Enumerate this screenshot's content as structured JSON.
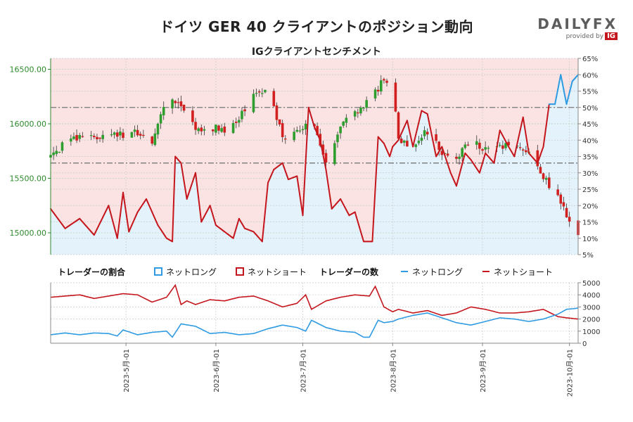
{
  "title": "ドイツ GER 40 クライアントのポジション動向",
  "subtitle": "IGクライアントセンチメント",
  "logo": {
    "brand": "DAILYFX",
    "provided_by": "provided by",
    "ig": "IG"
  },
  "colors": {
    "long": "#2e9be2",
    "short": "#c4161c",
    "up": "#2e9e2e",
    "down": "#d21f1f",
    "long_fill": "#e3f2fb",
    "short_fill": "#fbe3e3"
  },
  "chart_data": [
    {
      "type": "candlestick",
      "title": "IGクライアントセンチメント",
      "y_left_ticks": [
        "15000.00",
        "15500.00",
        "16000.00",
        "16500.00"
      ],
      "y_left_values": [
        15000,
        15500,
        16000,
        16500
      ],
      "ylim_left": [
        14800,
        16600
      ],
      "y_right_ticks": [
        "5%",
        "10%",
        "15%",
        "20%",
        "25%",
        "30%",
        "35%",
        "40%",
        "45%",
        "50%",
        "55%",
        "60%",
        "65%"
      ],
      "ylim_right": [
        5,
        65
      ],
      "reference_lines_pct": [
        33,
        50
      ],
      "x_tick_labels": [
        "2023-5月-01",
        "2023-6月-01",
        "2023-7月-01",
        "2023-8月-01",
        "2023-9月-01",
        "2023-10月-01"
      ],
      "x_tick_days": [
        26,
        57,
        87,
        118,
        149,
        179
      ],
      "x_range_days": [
        0,
        182
      ],
      "close_key_days": [
        0,
        5,
        10,
        15,
        20,
        26,
        30,
        35,
        40,
        45,
        50,
        57,
        60,
        65,
        70,
        75,
        80,
        87,
        90,
        95,
        100,
        105,
        108,
        113,
        115,
        118,
        120,
        125,
        130,
        135,
        140,
        145,
        149,
        155,
        160,
        165,
        170,
        175,
        178,
        182
      ],
      "close_key_values": [
        15700,
        15820,
        15870,
        15860,
        15910,
        15890,
        15920,
        15840,
        16250,
        16190,
        15930,
        15960,
        15930,
        16060,
        16280,
        16310,
        15880,
        15950,
        16050,
        15610,
        16000,
        16120,
        16160,
        16310,
        16430,
        16330,
        15850,
        15810,
        15930,
        15740,
        15700,
        15860,
        15760,
        15790,
        15820,
        15730,
        15520,
        15330,
        15150,
        14970
      ],
      "long_pct_key_days": [
        0,
        5,
        10,
        15,
        20,
        23,
        25,
        27,
        30,
        33,
        37,
        40,
        42,
        43,
        45,
        47,
        50,
        52,
        55,
        57,
        60,
        63,
        65,
        67,
        70,
        73,
        75,
        77,
        80,
        82,
        85,
        87,
        89,
        91,
        93,
        95,
        97,
        100,
        103,
        105,
        108,
        111,
        113,
        115,
        117,
        118,
        120,
        123,
        125,
        128,
        130,
        133,
        135,
        138,
        140,
        143,
        145,
        148,
        150,
        153,
        155,
        158,
        160,
        163,
        165,
        168,
        170,
        172,
        174,
        176,
        178,
        180,
        182
      ],
      "long_pct_key_values": [
        19,
        13,
        16,
        11,
        20,
        10,
        24,
        12,
        18,
        22,
        14,
        10,
        9,
        35,
        33,
        22,
        30,
        15,
        20,
        14,
        12,
        10,
        16,
        13,
        12,
        9,
        27,
        31,
        33,
        28,
        29,
        17,
        50,
        44,
        40,
        31,
        19,
        22,
        17,
        18,
        9,
        9,
        41,
        39,
        35,
        38,
        40,
        46,
        38,
        49,
        48,
        35,
        38,
        30,
        26,
        36,
        34,
        30,
        36,
        33,
        43,
        38,
        35,
        47,
        36,
        33,
        38,
        51,
        51,
        60,
        51,
        58,
        60
      ]
    },
    {
      "type": "area",
      "y_ticks": [
        "0",
        "1000",
        "2000",
        "3000",
        "4000",
        "5000"
      ],
      "ylim": [
        0,
        5000
      ],
      "long_count_key_days": [
        0,
        5,
        10,
        15,
        20,
        23,
        25,
        30,
        35,
        40,
        42,
        45,
        50,
        55,
        60,
        65,
        70,
        75,
        80,
        85,
        88,
        90,
        95,
        100,
        105,
        108,
        110,
        113,
        115,
        118,
        120,
        125,
        130,
        135,
        140,
        145,
        150,
        155,
        160,
        165,
        170,
        175,
        178,
        182
      ],
      "long_count_key_values": [
        700,
        850,
        700,
        850,
        800,
        600,
        1100,
        700,
        900,
        1000,
        500,
        1600,
        1400,
        800,
        900,
        700,
        800,
        1200,
        1500,
        1300,
        1000,
        1900,
        1300,
        1000,
        900,
        500,
        500,
        1900,
        1700,
        1800,
        2000,
        2300,
        2500,
        2100,
        1700,
        1500,
        1800,
        2100,
        2000,
        1800,
        2000,
        2400,
        2800,
        2900
      ],
      "short_count_key_days": [
        0,
        5,
        10,
        15,
        20,
        25,
        30,
        35,
        40,
        43,
        45,
        47,
        50,
        55,
        60,
        65,
        70,
        75,
        80,
        85,
        88,
        90,
        95,
        100,
        105,
        110,
        112,
        115,
        118,
        120,
        125,
        130,
        135,
        140,
        145,
        150,
        155,
        160,
        165,
        170,
        175,
        178,
        182
      ],
      "short_count_key_values": [
        3800,
        3900,
        4000,
        3700,
        3900,
        4100,
        4000,
        3400,
        3800,
        4800,
        3200,
        3500,
        3200,
        3600,
        3500,
        3800,
        3900,
        3500,
        3000,
        3300,
        4000,
        2800,
        3500,
        3800,
        4000,
        3900,
        4700,
        3000,
        2600,
        2800,
        2500,
        2700,
        2300,
        2500,
        3000,
        2800,
        2500,
        2500,
        2600,
        2800,
        2200,
        2100,
        2000
      ]
    }
  ],
  "legend": {
    "ratio_heading": "トレーダーの割合",
    "count_heading": "トレーダーの数",
    "net_long": "ネットロング",
    "net_short": "ネットショート"
  }
}
